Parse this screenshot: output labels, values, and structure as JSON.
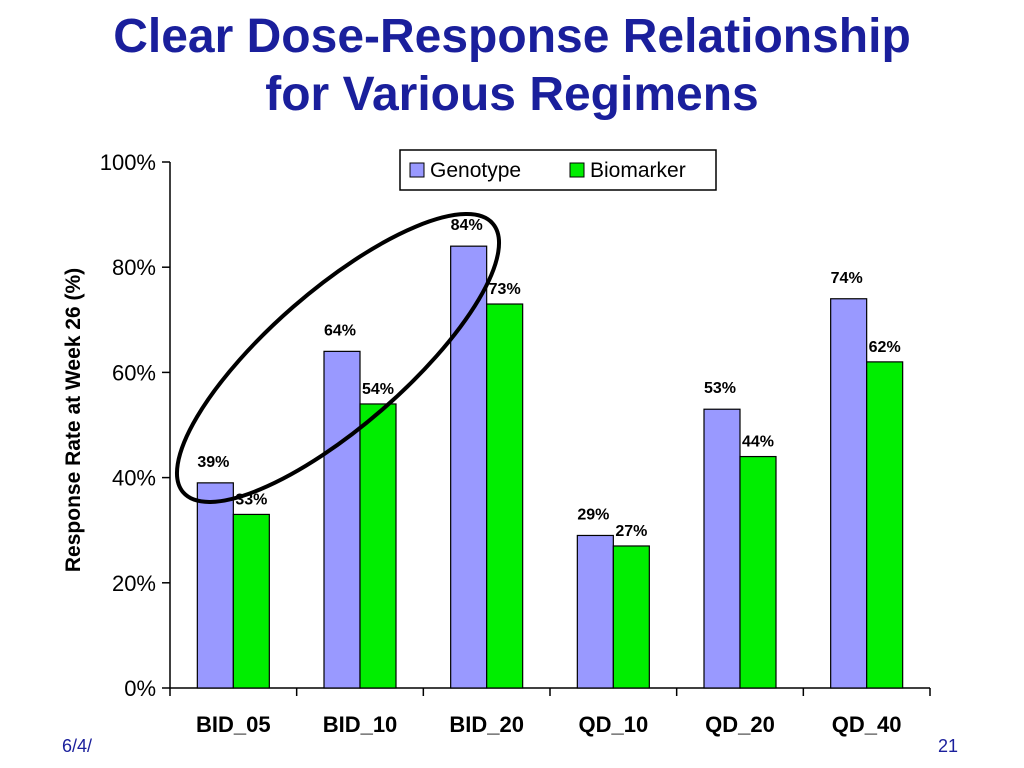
{
  "slide": {
    "title_line1": "Clear Dose-Response Relationship",
    "title_line2": "for Various Regimens",
    "footer_left": "6/4/",
    "page_number": "21"
  },
  "chart_data": {
    "type": "bar",
    "ylabel": "Response Rate at Week 26 (%)",
    "ylim": [
      0,
      100
    ],
    "yticks": [
      "0%",
      "20%",
      "40%",
      "60%",
      "80%",
      "100%"
    ],
    "categories": [
      "BID_05",
      "BID_10",
      "BID_20",
      "QD_10",
      "QD_20",
      "QD_40"
    ],
    "series": [
      {
        "name": "Genotype",
        "color": "#9999ff",
        "values": [
          39,
          64,
          84,
          29,
          53,
          74
        ],
        "labels": [
          "39%",
          "64%",
          "84%",
          "29%",
          "53%",
          "74%"
        ]
      },
      {
        "name": "Biomarker",
        "color": "#00ee00",
        "values": [
          33,
          54,
          73,
          27,
          44,
          62
        ],
        "labels": [
          "33%",
          "54%",
          "73%",
          "27%",
          "44%",
          "62%"
        ]
      }
    ],
    "legend_position": "top-right",
    "annotation": "ellipse around BID_05, BID_10, BID_20 Genotype bars"
  }
}
